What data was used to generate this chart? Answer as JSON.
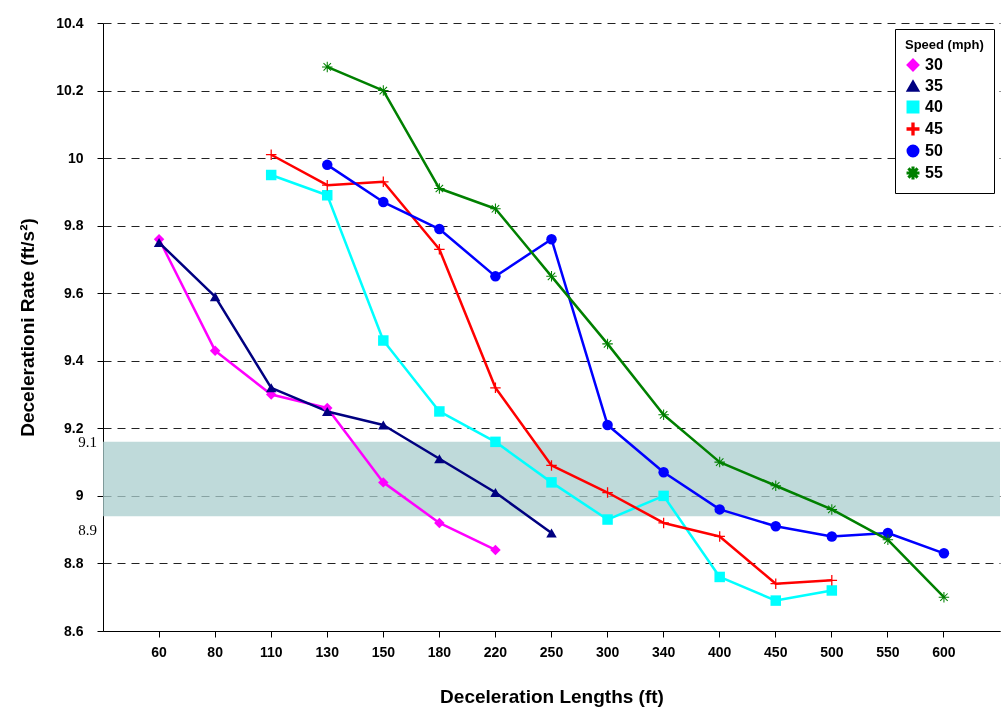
{
  "chart_data": {
    "type": "line",
    "xlabel": "Deceleration Lengths (ft)",
    "ylabel": "Decelerationi Rate (ft/s²)",
    "legend_title": "Speed (mph)",
    "categories": [
      "60",
      "80",
      "110",
      "130",
      "150",
      "180",
      "220",
      "250",
      "300",
      "340",
      "400",
      "450",
      "500",
      "550",
      "600"
    ],
    "series": [
      {
        "name": "30",
        "color": "#ff00ff",
        "marker": "diamond",
        "values": [
          9.76,
          9.43,
          9.3,
          9.26,
          9.04,
          8.92,
          8.84,
          null,
          null,
          null,
          null,
          null,
          null,
          null,
          null
        ]
      },
      {
        "name": "35",
        "color": "#000080",
        "marker": "triangle",
        "values": [
          9.75,
          9.59,
          9.32,
          9.25,
          9.21,
          9.11,
          9.01,
          8.89,
          null,
          null,
          null,
          null,
          null,
          null,
          null
        ]
      },
      {
        "name": "40",
        "color": "#00ffff",
        "marker": "square",
        "values": [
          null,
          null,
          9.95,
          9.89,
          9.46,
          9.25,
          9.16,
          9.04,
          8.93,
          9.0,
          8.76,
          8.69,
          8.72,
          null,
          null
        ]
      },
      {
        "name": "45",
        "color": "#ff0000",
        "marker": "cross",
        "values": [
          null,
          null,
          10.01,
          9.92,
          9.93,
          9.73,
          9.32,
          9.09,
          9.01,
          8.92,
          8.88,
          8.74,
          8.75,
          null,
          null
        ]
      },
      {
        "name": "50",
        "color": "#0000ff",
        "marker": "circle",
        "values": [
          null,
          null,
          null,
          9.98,
          9.87,
          9.79,
          9.65,
          9.76,
          9.21,
          9.07,
          8.96,
          8.91,
          8.88,
          8.89,
          8.83
        ]
      },
      {
        "name": "55",
        "color": "#008000",
        "marker": "star",
        "values": [
          null,
          null,
          null,
          10.27,
          10.2,
          9.91,
          9.85,
          9.65,
          9.45,
          9.24,
          9.1,
          9.03,
          8.96,
          8.87,
          8.7
        ]
      }
    ],
    "ylim": [
      8.6,
      10.4
    ],
    "yticks": [
      8.6,
      8.8,
      9,
      9.2,
      9.4,
      9.6,
      9.8,
      10,
      10.2,
      10.4
    ],
    "bands": [
      {
        "axis": "y",
        "from": 8.94,
        "to": 9.16,
        "color": "#a9cdcd"
      }
    ],
    "annotations": [
      "9.1",
      "8.9"
    ],
    "grid": "y",
    "legend": "top right",
    "line_style": "solid"
  }
}
